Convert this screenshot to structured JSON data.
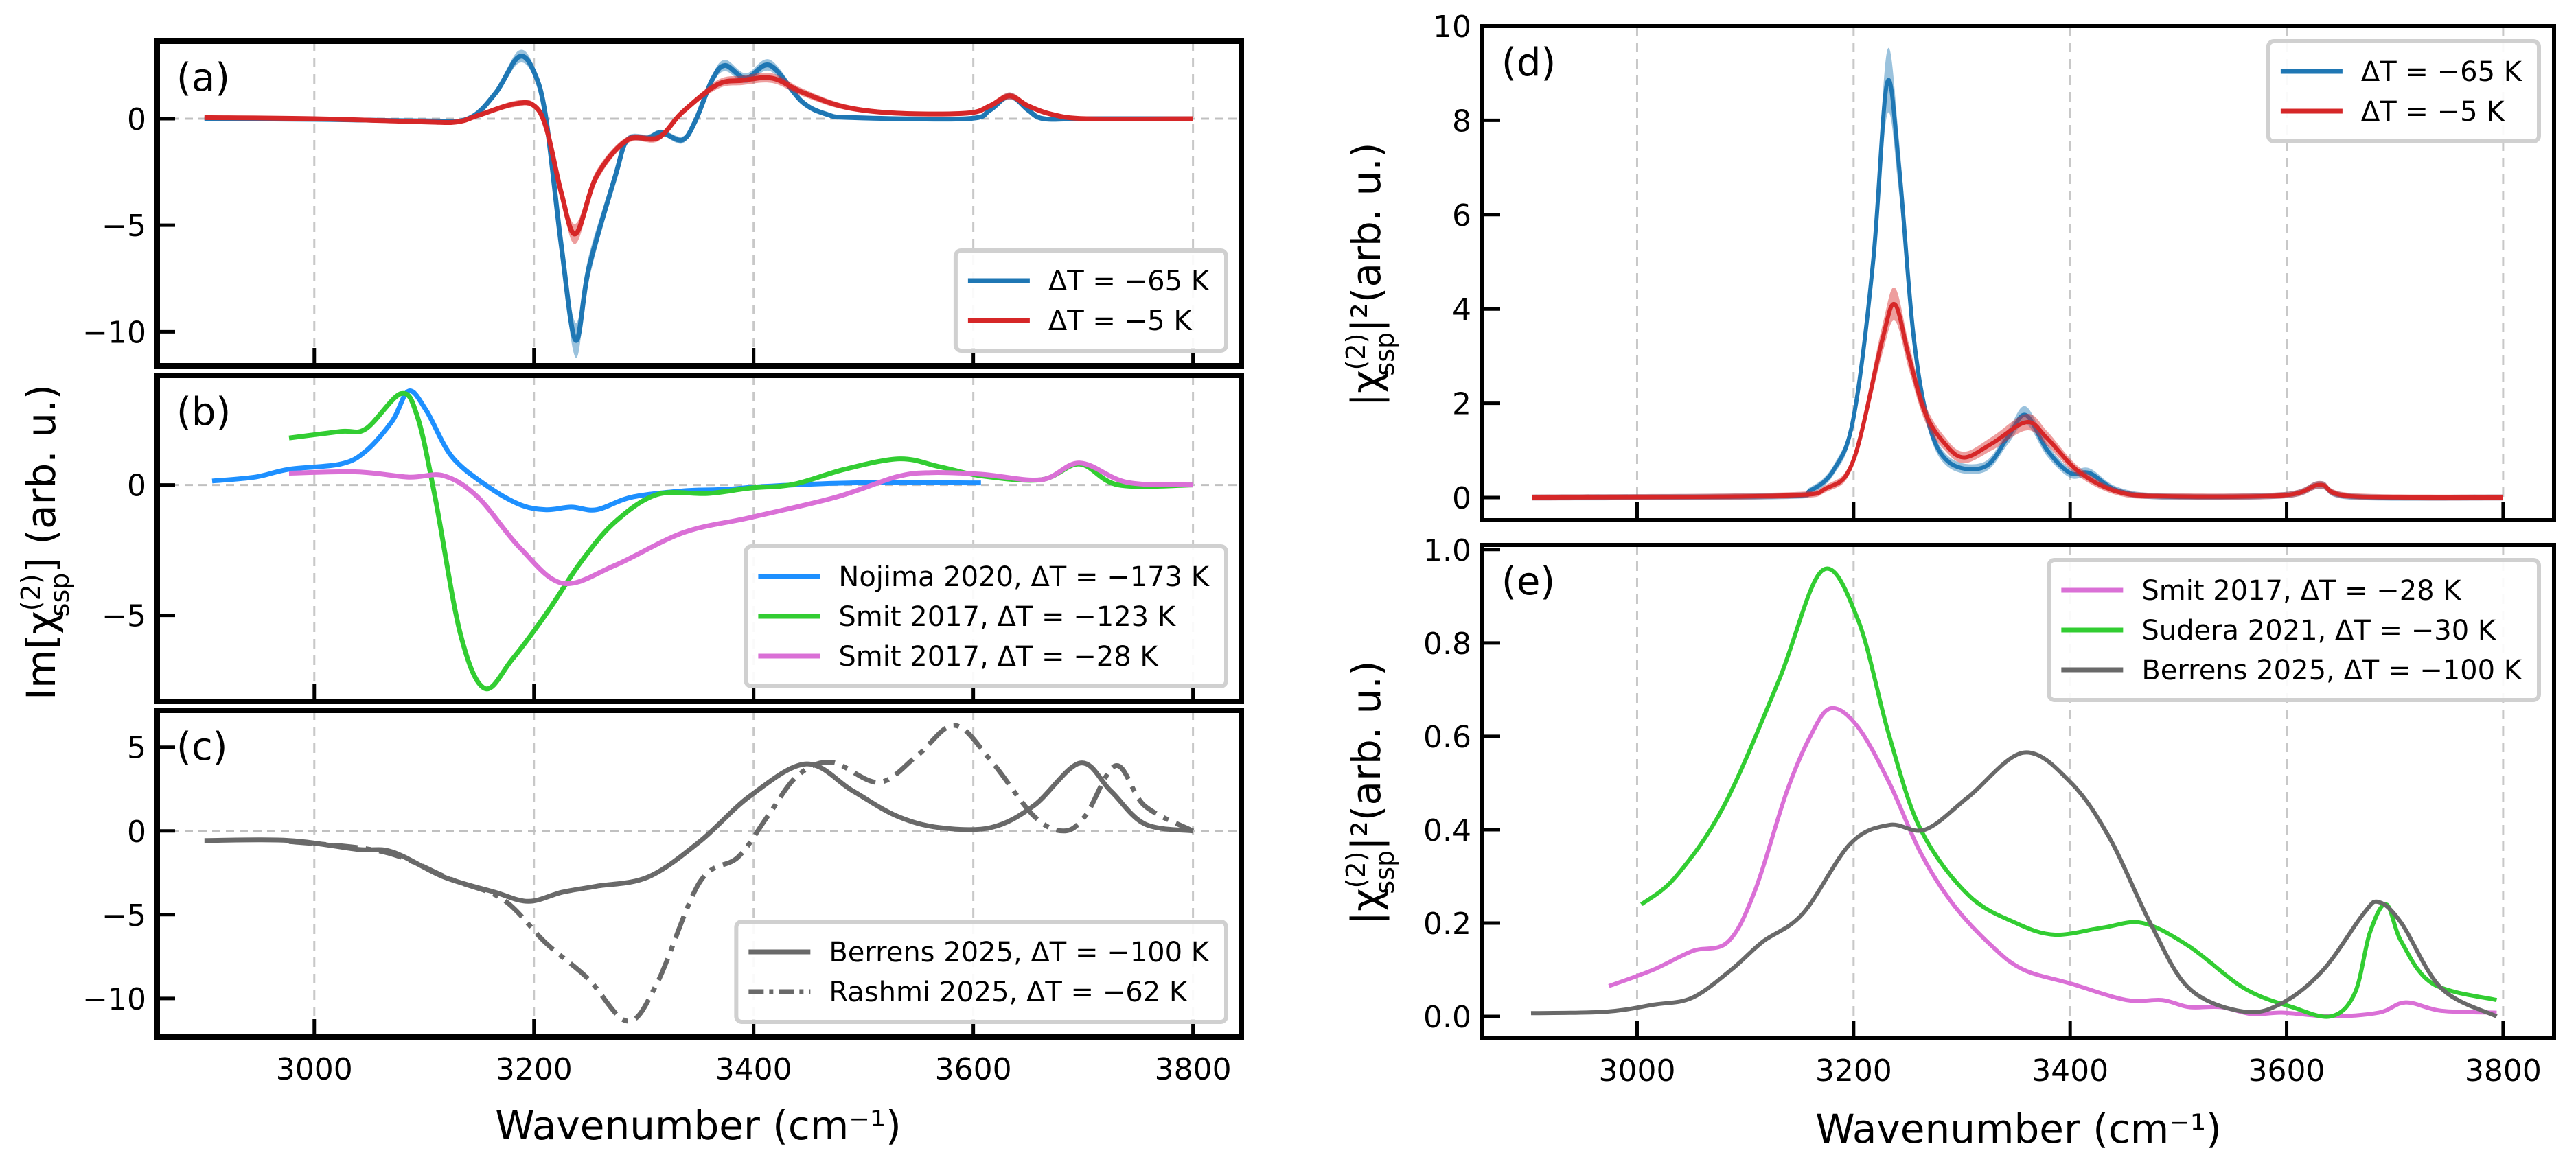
{
  "chart_data": [
    {
      "panel": "(a)",
      "type": "line",
      "xlim": [
        2857,
        3844
      ],
      "ylim": [
        -11.6,
        3.64
      ],
      "xticks": [
        3000,
        3200,
        3400,
        3600,
        3800
      ],
      "yticks": [
        0,
        -5,
        -10
      ],
      "ytick_labels": [
        "0",
        "−5",
        "−10"
      ],
      "legend_position": "lower-right",
      "grid": true,
      "zero_line": true,
      "band_rel": 0.07,
      "series": [
        {
          "name": "ΔT = −65 K",
          "color": "#1f77b4",
          "style": "solid",
          "band": true,
          "x": [
            2900,
            3000,
            3100,
            3140,
            3165,
            3186,
            3200,
            3211,
            3225,
            3238,
            3250,
            3274,
            3285,
            3304,
            3316,
            3335,
            3347,
            3362,
            3374,
            3393,
            3415,
            3444,
            3467,
            3490,
            3594,
            3615,
            3633,
            3650,
            3664,
            3700,
            3800
          ],
          "y": [
            0,
            -0.03,
            -0.1,
            0,
            1.2,
            2.9,
            2.2,
            0,
            -6,
            -10.4,
            -7,
            -2.7,
            -1.0,
            -0.9,
            -0.65,
            -1.0,
            -0.1,
            1.8,
            2.5,
            1.9,
            2.5,
            0.8,
            0.2,
            0.05,
            0,
            0.4,
            1.07,
            0.4,
            0,
            0,
            0
          ]
        },
        {
          "name": "ΔT = −5 K",
          "color": "#d62728",
          "style": "solid",
          "band": true,
          "x": [
            2900,
            3000,
            3100,
            3130,
            3149,
            3180,
            3199,
            3211,
            3225,
            3238,
            3257,
            3285,
            3313,
            3335,
            3367,
            3390,
            3417,
            3444,
            3483,
            3530,
            3594,
            3615,
            3633,
            3650,
            3672,
            3703,
            3800
          ],
          "y": [
            0.05,
            0,
            -0.15,
            -0.15,
            0.15,
            0.67,
            0.65,
            -0.4,
            -3.5,
            -5.4,
            -2.7,
            -1.0,
            -0.9,
            0.3,
            1.6,
            1.8,
            1.9,
            1.25,
            0.55,
            0.26,
            0.26,
            0.6,
            1.07,
            0.6,
            0.2,
            0,
            0
          ]
        }
      ]
    },
    {
      "panel": "(b)",
      "type": "line",
      "xlim": [
        2857,
        3844
      ],
      "ylim": [
        -8.3,
        4.2
      ],
      "xticks": [
        3000,
        3200,
        3400,
        3600,
        3800
      ],
      "yticks": [
        0,
        -5
      ],
      "ytick_labels": [
        "0",
        "−5"
      ],
      "legend_position": "lower-right",
      "grid": true,
      "zero_line": true,
      "series": [
        {
          "name": "Nojima 2020, ΔT = −173 K",
          "color": "#1e90ff",
          "style": "solid",
          "x": [
            2907,
            2946,
            2977,
            3024,
            3047,
            3071,
            3086,
            3102,
            3125,
            3156,
            3187,
            3211,
            3234,
            3257,
            3289,
            3336,
            3374,
            3413,
            3490,
            3607
          ],
          "y": [
            0.15,
            0.3,
            0.6,
            0.8,
            1.3,
            2.45,
            3.6,
            2.85,
            1.1,
            0,
            -0.75,
            -0.95,
            -0.85,
            -0.95,
            -0.47,
            -0.23,
            -0.17,
            -0.05,
            0.08,
            0.08
          ]
        },
        {
          "name": "Smit 2017, ΔT = −123 K",
          "color": "#32cd32",
          "style": "solid",
          "x": [
            2977,
            3024,
            3047,
            3079,
            3094,
            3110,
            3133,
            3155,
            3180,
            3211,
            3242,
            3273,
            3312,
            3358,
            3397,
            3436,
            3483,
            3533,
            3569,
            3607,
            3662,
            3697,
            3732,
            3800
          ],
          "y": [
            1.8,
            2.05,
            2.15,
            3.5,
            2.6,
            -0.47,
            -5.7,
            -7.8,
            -6.7,
            -4.95,
            -3.0,
            -1.45,
            -0.37,
            -0.33,
            -0.12,
            0.02,
            0.6,
            1.0,
            0.7,
            0.35,
            0.2,
            0.8,
            0,
            0
          ]
        },
        {
          "name": "Smit 2017, ΔT = −28 K",
          "color": "#da70d6",
          "style": "solid",
          "x": [
            2977,
            3039,
            3086,
            3118,
            3149,
            3187,
            3226,
            3273,
            3336,
            3397,
            3475,
            3530,
            3561,
            3607,
            3662,
            3697,
            3740,
            3800
          ],
          "y": [
            0.45,
            0.5,
            0.3,
            0.35,
            -0.47,
            -2.4,
            -3.77,
            -3.1,
            -1.83,
            -1.25,
            -0.47,
            0.31,
            0.47,
            0.41,
            0.2,
            0.84,
            0.1,
            0
          ]
        }
      ]
    },
    {
      "panel": "(c)",
      "type": "line",
      "xlim": [
        2857,
        3844
      ],
      "ylim": [
        -12.3,
        7.2
      ],
      "xticks": [
        3000,
        3200,
        3400,
        3600,
        3800
      ],
      "yticks": [
        5,
        0,
        -5,
        -10
      ],
      "ytick_labels": [
        "5",
        "0",
        "−5",
        "−10"
      ],
      "xtick_labels": [
        "3000",
        "3200",
        "3400",
        "3600",
        "3800"
      ],
      "xlabel": "Wavenumber (cm⁻¹)",
      "legend_position": "lower-right",
      "grid": true,
      "zero_line": true,
      "series": [
        {
          "name": "Berrens 2025, ΔT = −100 K",
          "color": "#696969",
          "style": "solid",
          "x": [
            2900,
            2977,
            3039,
            3071,
            3118,
            3164,
            3195,
            3226,
            3257,
            3304,
            3351,
            3397,
            3448,
            3490,
            3530,
            3569,
            3616,
            3655,
            3697,
            3725,
            3756,
            3800
          ],
          "y": [
            -0.57,
            -0.57,
            -1.1,
            -1.25,
            -2.75,
            -3.65,
            -4.2,
            -3.65,
            -3.3,
            -2.75,
            -0.63,
            2.1,
            4.0,
            2.4,
            0.9,
            0.2,
            0.2,
            1.5,
            4.05,
            2.4,
            0.42,
            0
          ]
        },
        {
          "name": "Rashmi 2025, ΔT = −62 K",
          "color": "#696969",
          "style": "dashdot",
          "x": [
            2977,
            3063,
            3125,
            3172,
            3211,
            3249,
            3285,
            3312,
            3351,
            3386,
            3413,
            3440,
            3471,
            3514,
            3549,
            3583,
            3616,
            3655,
            3682,
            3702,
            3730,
            3756,
            3800
          ],
          "y": [
            -0.63,
            -1.25,
            -2.9,
            -4.1,
            -6.7,
            -8.8,
            -11.35,
            -9.1,
            -3.05,
            -1.55,
            0.9,
            3.3,
            4.1,
            2.9,
            4.5,
            6.3,
            4.2,
            0.9,
            0,
            0.9,
            3.9,
            1.5,
            0
          ]
        }
      ]
    },
    {
      "panel": "(d)",
      "type": "line",
      "xlim": [
        2857,
        3847
      ],
      "ylim": [
        -0.48,
        10
      ],
      "xticks": [
        3000,
        3200,
        3400,
        3600,
        3800
      ],
      "yticks": [
        0,
        2,
        4,
        6,
        8,
        10
      ],
      "ytick_labels": [
        "0",
        "2",
        "4",
        "6",
        "8",
        "10"
      ],
      "legend_position": "upper-right",
      "grid": true,
      "zero_line": false,
      "band_rel": 0.07,
      "series": [
        {
          "name": "ΔT = −65 K",
          "color": "#1f77b4",
          "style": "solid",
          "band": true,
          "x": [
            2903,
            3131,
            3160,
            3182,
            3200,
            3218,
            3231,
            3242,
            3255,
            3269,
            3288,
            3321,
            3343,
            3359,
            3379,
            3400,
            3418,
            3444,
            3488,
            3598,
            3631,
            3660,
            3800
          ],
          "y": [
            0,
            0.03,
            0.15,
            0.6,
            1.7,
            5,
            8.8,
            7,
            3.5,
            1.6,
            0.75,
            0.65,
            1.3,
            1.75,
            1.0,
            0.52,
            0.52,
            0.15,
            0.02,
            0.05,
            0.27,
            0.02,
            0
          ]
        },
        {
          "name": "ΔT = −5 K",
          "color": "#d62728",
          "style": "solid",
          "band": true,
          "x": [
            2903,
            3131,
            3175,
            3200,
            3226,
            3238,
            3251,
            3266,
            3284,
            3302,
            3328,
            3360,
            3379,
            3408,
            3444,
            3488,
            3598,
            3631,
            3660,
            3800
          ],
          "y": [
            0,
            0.04,
            0.2,
            0.8,
            3.3,
            4.1,
            3.0,
            1.8,
            1.15,
            0.85,
            1.15,
            1.6,
            1.25,
            0.55,
            0.12,
            0.03,
            0.05,
            0.27,
            0.03,
            0
          ]
        }
      ]
    },
    {
      "panel": "(e)",
      "type": "line",
      "xlim": [
        2857,
        3847
      ],
      "ylim": [
        -0.047,
        1.01
      ],
      "xticks": [
        3000,
        3200,
        3400,
        3600,
        3800
      ],
      "yticks": [
        0,
        0.2,
        0.4,
        0.6,
        0.8,
        1.0
      ],
      "ytick_labels": [
        "0.0",
        "0.2",
        "0.4",
        "0.6",
        "0.8",
        "1.0"
      ],
      "xtick_labels": [
        "3000",
        "3200",
        "3400",
        "3600",
        "3800"
      ],
      "xlabel": "Wavenumber (cm⁻¹)",
      "legend_position": "upper-right",
      "grid": true,
      "zero_line": false,
      "series": [
        {
          "name": "Smit 2017, ΔT = −28 K",
          "color": "#da70d6",
          "style": "solid",
          "x": [
            2974,
            3015,
            3051,
            3084,
            3109,
            3138,
            3160,
            3179,
            3204,
            3233,
            3262,
            3292,
            3328,
            3357,
            3401,
            3452,
            3485,
            3510,
            3539,
            3568,
            3597,
            3641,
            3685,
            3710,
            3743,
            3794
          ],
          "y": [
            0.065,
            0.1,
            0.14,
            0.16,
            0.27,
            0.48,
            0.6,
            0.66,
            0.62,
            0.5,
            0.35,
            0.24,
            0.15,
            0.1,
            0.07,
            0.035,
            0.035,
            0.02,
            0.02,
            0.005,
            0.008,
            0,
            0.008,
            0.03,
            0.012,
            0.008
          ]
        },
        {
          "name": "Sudera 2021, ΔT = −30 K",
          "color": "#32cd32",
          "style": "solid",
          "x": [
            3004,
            3036,
            3080,
            3131,
            3171,
            3204,
            3233,
            3262,
            3306,
            3350,
            3386,
            3430,
            3467,
            3510,
            3561,
            3605,
            3641,
            3663,
            3677,
            3692,
            3706,
            3735,
            3794
          ],
          "y": [
            0.24,
            0.3,
            0.45,
            0.72,
            0.955,
            0.85,
            0.6,
            0.4,
            0.26,
            0.2,
            0.175,
            0.19,
            0.2,
            0.15,
            0.06,
            0.02,
            0.0,
            0.05,
            0.18,
            0.24,
            0.16,
            0.07,
            0.035
          ]
        },
        {
          "name": "Berrens 2025, ΔT = −100 K",
          "color": "#696969",
          "style": "solid",
          "x": [
            2902,
            2971,
            3015,
            3051,
            3087,
            3116,
            3153,
            3197,
            3233,
            3266,
            3306,
            3357,
            3401,
            3437,
            3474,
            3510,
            3561,
            3597,
            3634,
            3671,
            3685,
            3706,
            3743,
            3794
          ],
          "y": [
            0.007,
            0.01,
            0.025,
            0.04,
            0.1,
            0.16,
            0.22,
            0.37,
            0.41,
            0.4,
            0.47,
            0.565,
            0.5,
            0.38,
            0.2,
            0.06,
            0.01,
            0.03,
            0.1,
            0.22,
            0.245,
            0.2,
            0.06,
            0.0
          ]
        }
      ]
    }
  ],
  "labels": {
    "left_ylabel": {
      "pre": "Im[χ",
      "sup": "(2)",
      "sub": "ssp",
      "post": "] (arb. u.)"
    },
    "right_ylabel": {
      "pre": "|χ",
      "sup": "(2)",
      "sub": "ssp",
      "post": "|²(arb. u.)"
    },
    "xlabel": "Wavenumber (cm⁻¹)"
  }
}
